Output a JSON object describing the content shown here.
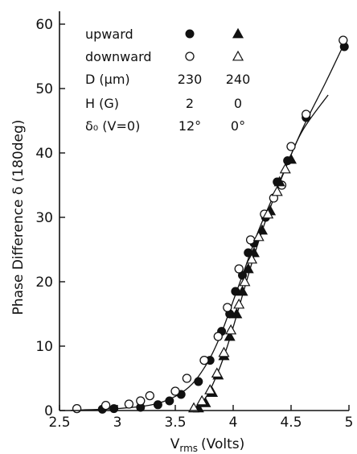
{
  "chart_data": {
    "type": "scatter",
    "xlabel": "V",
    "xlabel_sub": "rms",
    "xlabel_unit": "(Volts)",
    "ylabel": "Phase Difference δ  (180deg)",
    "xlim": [
      2.5,
      5.0
    ],
    "ylim": [
      0,
      62
    ],
    "x_ticks": [
      2.5,
      3,
      3.5,
      4,
      4.5,
      5
    ],
    "x_tick_labels": [
      "2.5",
      "3",
      "3.5",
      "4",
      "4.5",
      "5"
    ],
    "y_ticks": [
      0,
      10,
      20,
      30,
      40,
      50,
      60
    ],
    "y_tick_labels": [
      "0",
      "10",
      "20",
      "30",
      "40",
      "50",
      "60"
    ],
    "grid": false,
    "legend": {
      "placement": "top-left",
      "rows": [
        {
          "label": "upward",
          "col1_marker": "filled-circle",
          "col2_marker": "filled-triangle"
        },
        {
          "label": "downward",
          "col1_marker": "open-circle",
          "col2_marker": "open-triangle"
        },
        {
          "label": "D (μm)",
          "col1": "230",
          "col2": "240"
        },
        {
          "label": "H (G)",
          "col1": "2",
          "col2": "0"
        },
        {
          "label": "δ₀ (V=0)",
          "col1": "12°",
          "col2": "0°"
        }
      ]
    },
    "series": [
      {
        "marker": "filled-circle",
        "points": [
          [
            2.87,
            0.2
          ],
          [
            2.97,
            0.3
          ],
          [
            3.2,
            0.5
          ],
          [
            3.35,
            0.9
          ],
          [
            3.45,
            1.5
          ],
          [
            3.55,
            2.5
          ],
          [
            3.7,
            4.5
          ],
          [
            3.8,
            7.8
          ],
          [
            3.9,
            12.3
          ],
          [
            3.97,
            15.0
          ],
          [
            4.02,
            18.5
          ],
          [
            4.08,
            21.0
          ],
          [
            4.13,
            24.5
          ],
          [
            4.18,
            26.0
          ],
          [
            4.28,
            30.0
          ],
          [
            4.38,
            35.5
          ],
          [
            4.47,
            38.8
          ],
          [
            4.63,
            45.5
          ],
          [
            4.96,
            56.5
          ]
        ]
      },
      {
        "marker": "open-circle",
        "points": [
          [
            2.65,
            0.3
          ],
          [
            2.9,
            0.8
          ],
          [
            3.1,
            1.0
          ],
          [
            3.2,
            1.5
          ],
          [
            3.28,
            2.3
          ],
          [
            3.5,
            3.0
          ],
          [
            3.6,
            5.0
          ],
          [
            3.75,
            7.8
          ],
          [
            3.87,
            11.5
          ],
          [
            3.95,
            16.0
          ],
          [
            4.05,
            22.0
          ],
          [
            4.15,
            26.5
          ],
          [
            4.27,
            30.5
          ],
          [
            4.35,
            33.0
          ],
          [
            4.42,
            35.0
          ],
          [
            4.5,
            41.0
          ],
          [
            4.63,
            46.0
          ],
          [
            4.95,
            57.5
          ]
        ]
      },
      {
        "marker": "filled-triangle",
        "points": [
          [
            3.7,
            0.4
          ],
          [
            3.76,
            1.2
          ],
          [
            3.82,
            2.8
          ],
          [
            3.87,
            5.5
          ],
          [
            3.92,
            8.5
          ],
          [
            3.97,
            11.5
          ],
          [
            4.03,
            15.0
          ],
          [
            4.08,
            18.5
          ],
          [
            4.13,
            22.0
          ],
          [
            4.18,
            24.5
          ],
          [
            4.25,
            28.0
          ],
          [
            4.32,
            31.0
          ],
          [
            4.4,
            35.5
          ],
          [
            4.5,
            39.0
          ]
        ]
      },
      {
        "marker": "open-triangle",
        "points": [
          [
            3.66,
            0.4
          ],
          [
            3.73,
            1.5
          ],
          [
            3.8,
            3.2
          ],
          [
            3.86,
            5.8
          ],
          [
            3.92,
            9.0
          ],
          [
            3.98,
            12.5
          ],
          [
            4.05,
            16.5
          ],
          [
            4.1,
            20.0
          ],
          [
            4.16,
            23.5
          ],
          [
            4.22,
            27.0
          ],
          [
            4.3,
            30.5
          ],
          [
            4.38,
            34.0
          ],
          [
            4.45,
            37.5
          ]
        ]
      }
    ],
    "curves": [
      [
        [
          2.6,
          0.05
        ],
        [
          3.0,
          0.3
        ],
        [
          3.3,
          0.9
        ],
        [
          3.5,
          2.2
        ],
        [
          3.65,
          4.2
        ],
        [
          3.78,
          7.5
        ],
        [
          3.88,
          11.2
        ],
        [
          3.98,
          16.0
        ],
        [
          4.1,
          22.0
        ],
        [
          4.22,
          28.0
        ],
        [
          4.4,
          35.5
        ],
        [
          4.6,
          43.8
        ],
        [
          4.8,
          51.0
        ],
        [
          4.96,
          57.0
        ]
      ],
      [
        [
          3.68,
          0.0
        ],
        [
          3.78,
          2.5
        ],
        [
          3.87,
          6.0
        ],
        [
          3.95,
          10.0
        ],
        [
          4.05,
          16.0
        ],
        [
          4.18,
          24.0
        ],
        [
          4.3,
          30.5
        ],
        [
          4.45,
          37.5
        ],
        [
          4.6,
          43.5
        ],
        [
          4.82,
          49.0
        ]
      ]
    ]
  }
}
